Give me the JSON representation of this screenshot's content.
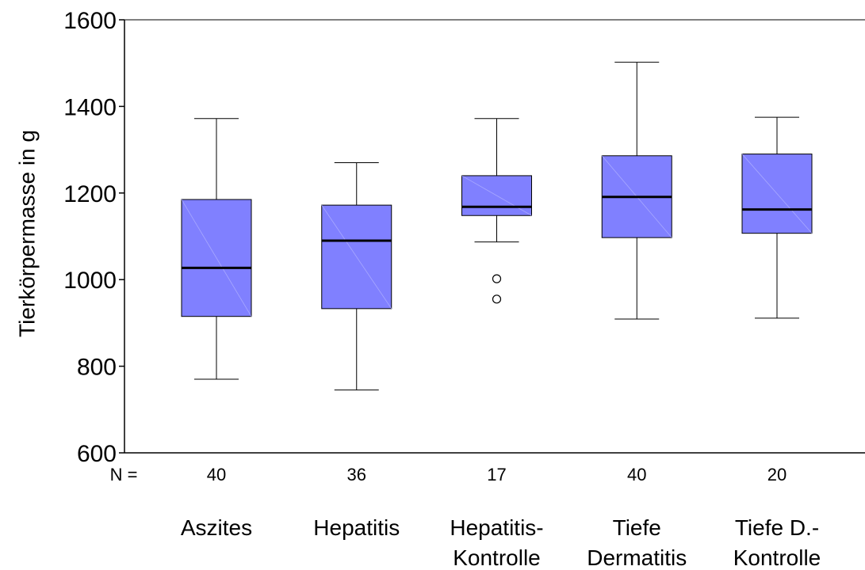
{
  "chart_data": {
    "type": "boxplot",
    "title": "",
    "ylabel": "Tierkörpermasse in g",
    "ylim": [
      600,
      1600
    ],
    "yticks": [
      600,
      800,
      1000,
      1200,
      1400,
      1600
    ],
    "n_prefix": "N =",
    "box_color": "#8080FF",
    "median_color": "#000000",
    "categories": [
      {
        "lines": [
          "Aszites"
        ],
        "n": "40",
        "whisker_low": 770,
        "q1": 915,
        "median": 1027,
        "q3": 1185,
        "whisker_high": 1372,
        "outliers": []
      },
      {
        "lines": [
          "Hepatitis"
        ],
        "n": "36",
        "whisker_low": 745,
        "q1": 933,
        "median": 1090,
        "q3": 1172,
        "whisker_high": 1270,
        "outliers": []
      },
      {
        "lines": [
          "Hepatitis-",
          "Kontrolle"
        ],
        "n": "17",
        "whisker_low": 1087,
        "q1": 1148,
        "median": 1168,
        "q3": 1240,
        "whisker_high": 1372,
        "outliers": [
          1002,
          955
        ]
      },
      {
        "lines": [
          "Tiefe",
          "Dermatitis"
        ],
        "n": "40",
        "whisker_low": 909,
        "q1": 1097,
        "median": 1191,
        "q3": 1286,
        "whisker_high": 1502,
        "outliers": []
      },
      {
        "lines": [
          "Tiefe D.-",
          "Kontrolle"
        ],
        "n": "20",
        "whisker_low": 911,
        "q1": 1107,
        "median": 1162,
        "q3": 1290,
        "whisker_high": 1375,
        "outliers": []
      }
    ]
  }
}
